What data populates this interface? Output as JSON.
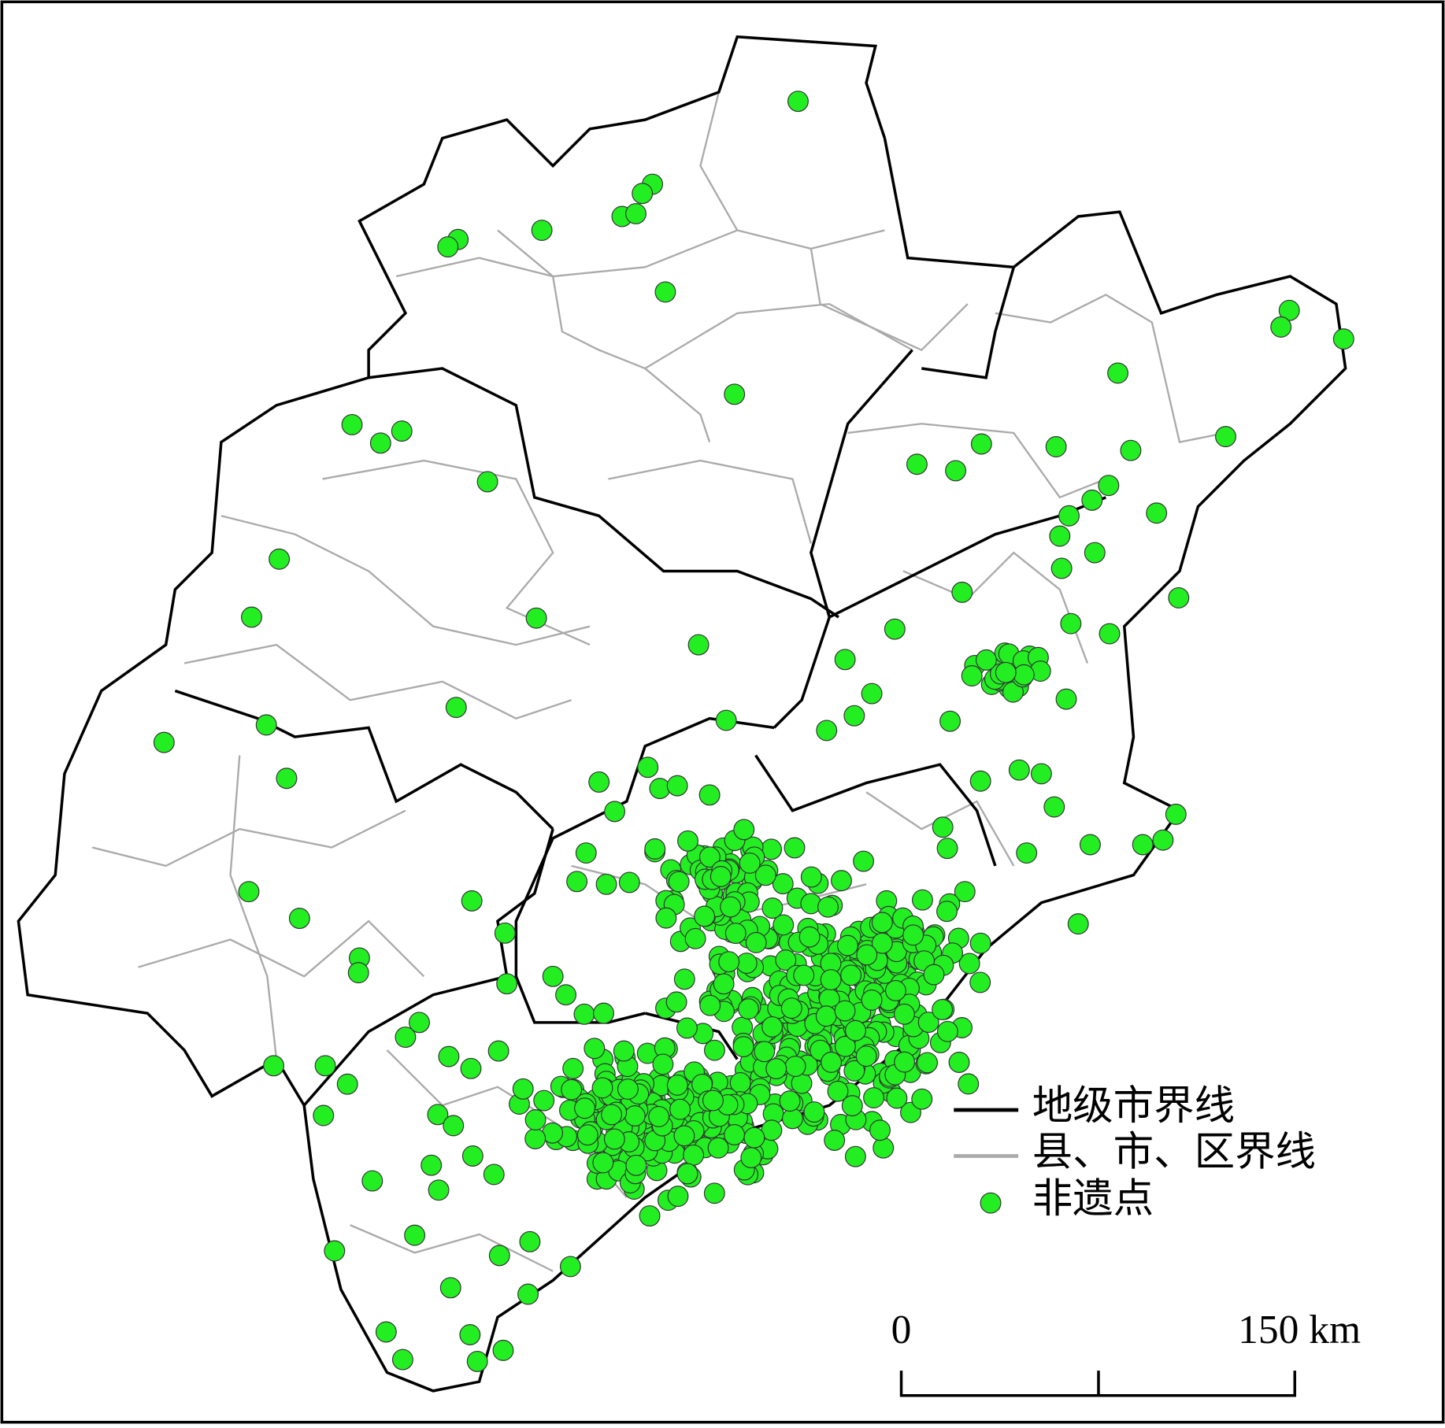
{
  "legend": {
    "items": [
      {
        "label": "地级市界线"
      },
      {
        "label": "县、市、区界线"
      },
      {
        "label": "非遗点"
      }
    ]
  },
  "scale_bar": {
    "start_label": "0",
    "end_label": "150 km"
  }
}
